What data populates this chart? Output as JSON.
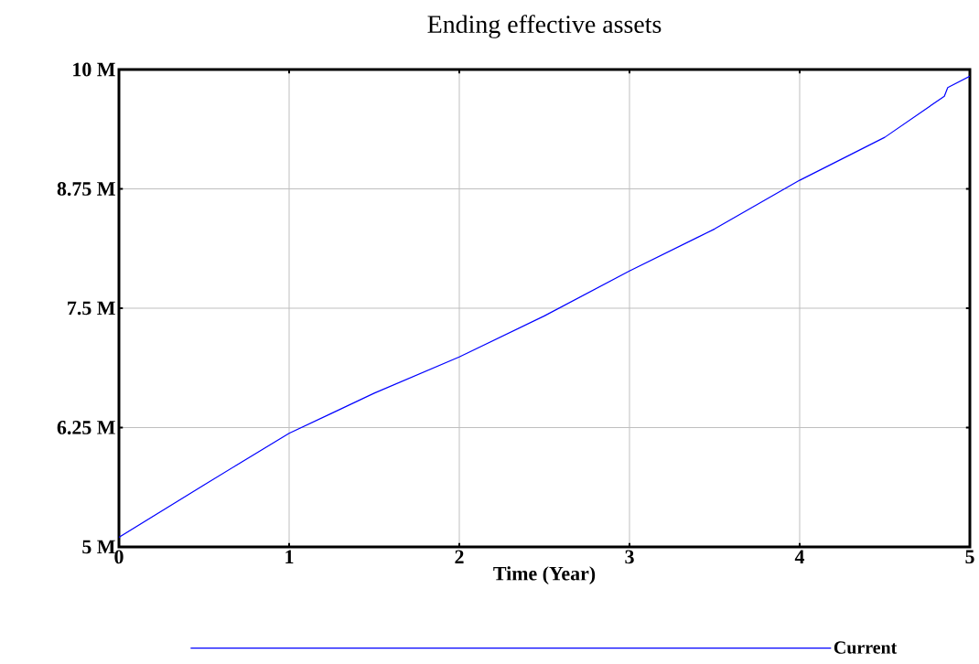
{
  "chart_data": {
    "type": "line",
    "title": "Ending effective assets",
    "xlabel": "Time (Year)",
    "x": [
      0,
      0.5,
      1,
      1.25,
      1.5,
      2,
      2.5,
      3,
      3.5,
      4,
      4.5,
      4.85,
      4.87,
      5
    ],
    "series": [
      {
        "name": "Current",
        "color": "#0000ff",
        "values": [
          5100000,
          5650000,
          6190000,
          6400000,
          6610000,
          6990000,
          7420000,
          7890000,
          8330000,
          8840000,
          9290000,
          9720000,
          9810000,
          9930000
        ]
      }
    ],
    "xlim": [
      0,
      5
    ],
    "xticks": [
      0,
      1,
      2,
      3,
      4,
      5
    ],
    "ylim": [
      5000000,
      10000000
    ],
    "yticks": [
      {
        "value": 5000000,
        "label": "5 M"
      },
      {
        "value": 6250000,
        "label": "6.25 M"
      },
      {
        "value": 7500000,
        "label": "7.5 M"
      },
      {
        "value": 8750000,
        "label": "8.75 M"
      },
      {
        "value": 10000000,
        "label": "10 M"
      }
    ],
    "grid": true,
    "legend": "bottom",
    "marker": "none",
    "line_style": "solid"
  }
}
